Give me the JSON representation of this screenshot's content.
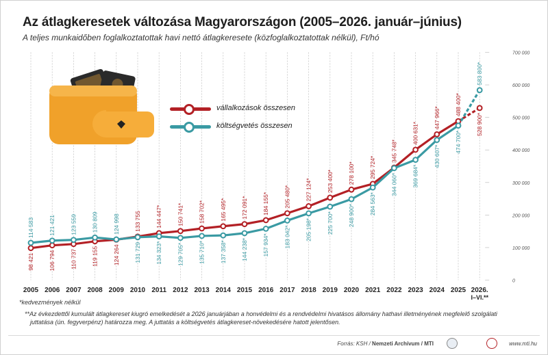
{
  "header": {
    "title": "Az átlagkeresetek változása Magyarországon (2005–2026. január–június)",
    "subtitle": "A teljes munkaidőben foglalkoztatottak havi nettó átlagkeresete (közfoglalkoztatottak nélkül), Ft/hó"
  },
  "legend": {
    "business": "vállalkozások összesen",
    "budget": "költségvetés összesen"
  },
  "footnotes": {
    "note1": "*kedvezmények nélkül",
    "note2": "**Az évkezdettől kumulált átlagkereset kiugró emelkedését a 2026 januárjában a honvédelmi és a rendvédelmi hivatásos állomány hathavi illetményének megfelelő szolgálati juttatása (ún. fegyverpénz) határozza meg. A juttatás a költségvetés átlagkereset-növekedésére hatott jelentősen."
  },
  "footer": {
    "source_prefix": "Forrás: KSH / ",
    "source_bold": "Nemzeti Archívum / MTI",
    "url": "www.mti.hu"
  },
  "icons": {
    "wallet": "wallet-icon"
  },
  "colors": {
    "business": "#b32025",
    "budget": "#3a9aa3",
    "grid": "#bdbdbd",
    "wallet_body": "#f0a12a",
    "wallet_flap": "#f6ad3a",
    "banknotes": "#2a2a2a"
  },
  "chart_data": {
    "type": "line",
    "x_labels": [
      "2005",
      "2006",
      "2007",
      "2008",
      "2009",
      "2010",
      "2011",
      "2012",
      "2013",
      "2014",
      "2015",
      "2016",
      "2017",
      "2018",
      "2019",
      "2020",
      "2021",
      "2022",
      "2023",
      "2024",
      "2025",
      "2026. I–VI.**"
    ],
    "ylim": [
      0,
      700000
    ],
    "yticks": [
      0,
      100000,
      200000,
      300000,
      400000,
      500000,
      600000,
      700000
    ],
    "ytick_labels": [
      "0",
      "100 000",
      "200 000",
      "300 000",
      "400 000",
      "500 000",
      "600 000",
      "700 000"
    ],
    "grid": "vertical dashed lines at each year",
    "series": [
      {
        "name": "vállalkozások összesen",
        "values": [
          98421,
          106794,
          110737,
          119155,
          124264,
          133755,
          144447,
          150741,
          158702,
          165495,
          172091,
          184155,
          205480,
          227124,
          253400,
          278100,
          295724,
          345748,
          400631,
          447966,
          488400,
          528900
        ],
        "labels": [
          "98 421",
          "106 794",
          "110 737",
          "119 155",
          "124 264",
          "133 755",
          "144 447*",
          "150 741*",
          "158 702*",
          "165 495*",
          "172 091*",
          "184 155*",
          "205 480*",
          "227 124*",
          "253 400*",
          "278 100*",
          "295 724*",
          "345 748*",
          "400 631*",
          "447 966*",
          "488 400*",
          "528 900*"
        ]
      },
      {
        "name": "költségvetés összesen",
        "values": [
          114583,
          121421,
          123559,
          130809,
          124998,
          131729,
          134323,
          129705,
          135710,
          137358,
          144238,
          157934,
          183042,
          205198,
          225700,
          248900,
          284563,
          344060,
          369684,
          430607,
          474700,
          583800
        ],
        "labels": [
          "114 583",
          "121 421",
          "123 559",
          "130 809",
          "124 998",
          "131 729",
          "134 323*",
          "129 705*",
          "135 710*",
          "137 358*",
          "144 238*",
          "157 934*",
          "183 042*",
          "205 198*",
          "225 700*",
          "248 900*",
          "284 563*",
          "344 060*",
          "369 684*",
          "430 607*",
          "474 700*",
          "583 800*"
        ]
      }
    ]
  }
}
